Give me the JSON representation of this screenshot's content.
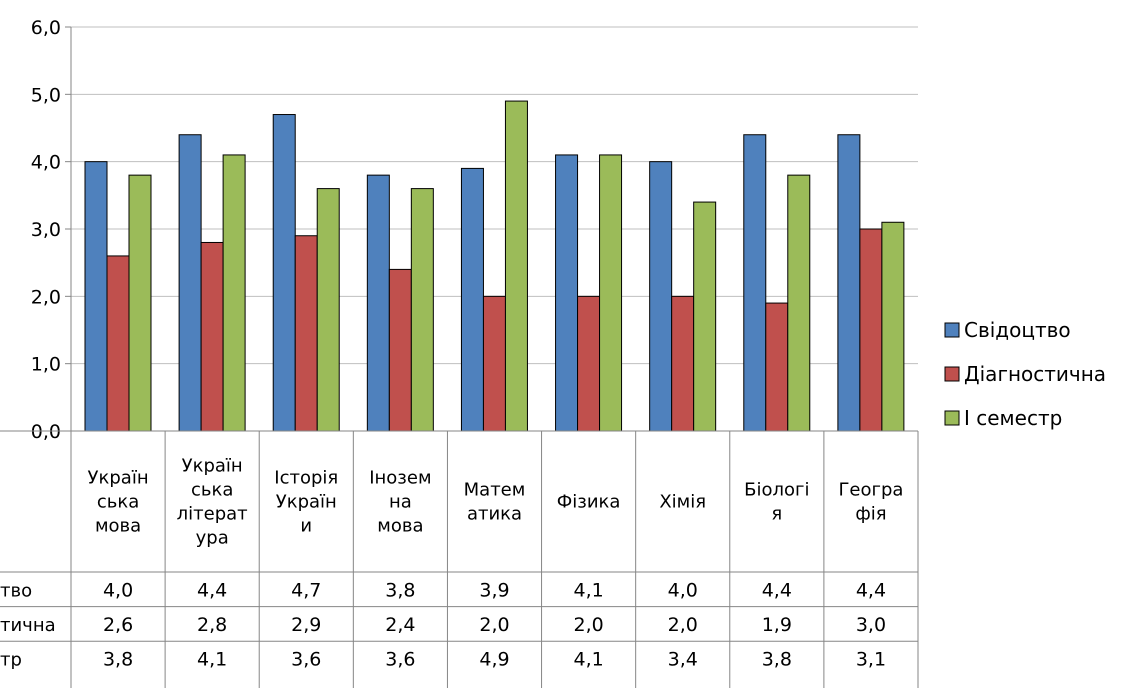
{
  "chart_data": {
    "type": "bar",
    "title": "",
    "xlabel": "",
    "ylabel": "",
    "ylim": [
      0,
      6
    ],
    "yticks": [
      "0,0",
      "1,0",
      "2,0",
      "3,0",
      "4,0",
      "5,0",
      "6,0"
    ],
    "grid": true,
    "legend_position": "right",
    "data_table": true,
    "categories": [
      [
        "Україн",
        "ська",
        "мова"
      ],
      [
        "Україн",
        "ська",
        "літерат",
        "ура"
      ],
      [
        "Історія",
        "Україн",
        "и"
      ],
      [
        "Інозем",
        "на",
        "мова"
      ],
      [
        "Матем",
        "атика"
      ],
      [
        "Фізика"
      ],
      [
        "Хімія"
      ],
      [
        "Біологі",
        "я"
      ],
      [
        "Геогра",
        "фія"
      ]
    ],
    "series": [
      {
        "name": "Свідоцтво",
        "table_label": "тво",
        "color": "#4F81BD",
        "values": [
          4.0,
          4.4,
          4.7,
          3.8,
          3.9,
          4.1,
          4.0,
          4.4,
          4.4
        ],
        "labels": [
          "4,0",
          "4,4",
          "4,7",
          "3,8",
          "3,9",
          "4,1",
          "4,0",
          "4,4",
          "4,4"
        ]
      },
      {
        "name": "Діагностична",
        "table_label": "тична",
        "color": "#C0504D",
        "values": [
          2.6,
          2.8,
          2.9,
          2.4,
          2.0,
          2.0,
          2.0,
          1.9,
          3.0
        ],
        "labels": [
          "2,6",
          "2,8",
          "2,9",
          "2,4",
          "2,0",
          "2,0",
          "2,0",
          "1,9",
          "3,0"
        ]
      },
      {
        "name": "І семестр",
        "table_label": "тр",
        "color": "#9BBB59",
        "values": [
          3.8,
          4.1,
          3.6,
          3.6,
          4.9,
          4.1,
          3.4,
          3.8,
          3.1
        ],
        "labels": [
          "3,8",
          "4,1",
          "3,6",
          "3,6",
          "4,9",
          "4,1",
          "3,4",
          "3,8",
          "3,1"
        ]
      }
    ]
  }
}
